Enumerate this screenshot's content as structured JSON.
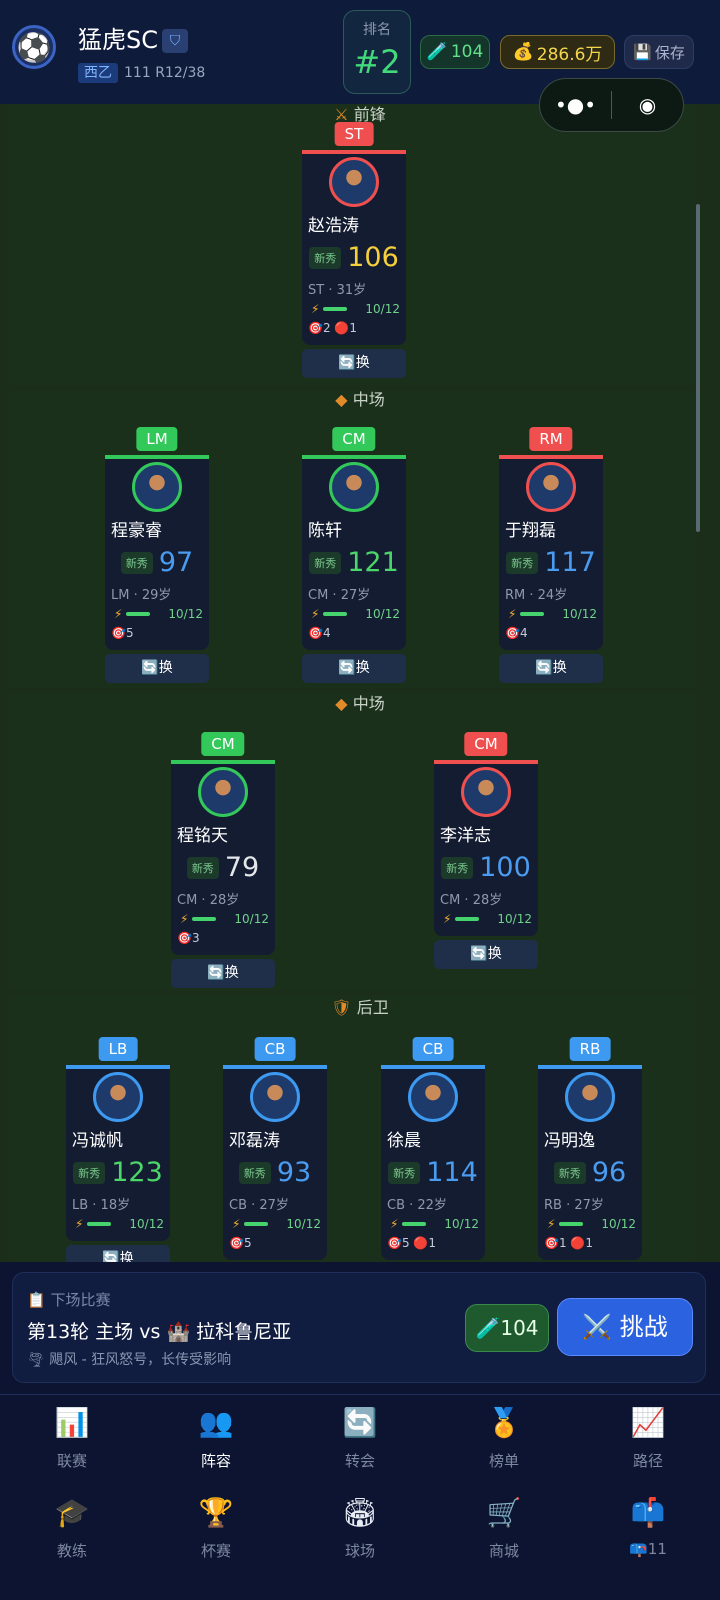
{
  "header": {
    "team": "猛虎SC",
    "league": "西乙",
    "league_num": "111",
    "round": "R12/38",
    "rank_label": "排名",
    "rank": "#2",
    "energy": "104",
    "money": "286.6万",
    "save": "保存"
  },
  "colors": {
    "red": "#ef4f4f",
    "green": "#33c95a",
    "blue": "#3d9af0",
    "yellow": "#f5d03a",
    "rating_blue": "#4a9cf0",
    "rating_green": "#4cd66a",
    "rating_white": "#e4e6ea"
  },
  "sections": [
    {
      "icon": "⚔",
      "title": "前锋"
    },
    {
      "icon": "◆",
      "title": "中场"
    },
    {
      "icon": "◆",
      "title": "中场"
    },
    {
      "icon": "🛡",
      "title": "后卫"
    }
  ],
  "players": [
    {
      "pos": "ST",
      "color": "red",
      "name": "赵浩涛",
      "badge": "新秀",
      "rating": "106",
      "rcolor": "yellow",
      "pa": "ST · 31岁",
      "stamina": "10/12",
      "goals": "2",
      "cards": "1",
      "swap": "换"
    },
    {
      "pos": "LM",
      "color": "green",
      "name": "程豪睿",
      "badge": "新秀",
      "rating": "97",
      "rcolor": "rating_blue",
      "pa": "LM · 29岁",
      "stamina": "10/12",
      "goals": "5",
      "cards": "",
      "swap": "换"
    },
    {
      "pos": "CM",
      "color": "green",
      "name": "陈轩",
      "badge": "新秀",
      "rating": "121",
      "rcolor": "rating_green",
      "pa": "CM · 27岁",
      "stamina": "10/12",
      "goals": "4",
      "cards": "",
      "swap": "换"
    },
    {
      "pos": "RM",
      "color": "red",
      "name": "于翔磊",
      "badge": "新秀",
      "rating": "117",
      "rcolor": "rating_blue",
      "pa": "RM · 24岁",
      "stamina": "10/12",
      "goals": "4",
      "cards": "",
      "swap": "换"
    },
    {
      "pos": "CM",
      "color": "green",
      "name": "程铭天",
      "badge": "新秀",
      "rating": "79",
      "rcolor": "rating_white",
      "pa": "CM · 28岁",
      "stamina": "10/12",
      "goals": "3",
      "cards": "",
      "swap": "换"
    },
    {
      "pos": "CM",
      "color": "red",
      "name": "李洋志",
      "badge": "新秀",
      "rating": "100",
      "rcolor": "rating_blue",
      "pa": "CM · 28岁",
      "stamina": "10/12",
      "goals": "",
      "cards": "",
      "swap": "换"
    },
    {
      "pos": "LB",
      "color": "blue",
      "name": "冯诚帆",
      "badge": "新秀",
      "rating": "123",
      "rcolor": "rating_green",
      "pa": "LB · 18岁",
      "stamina": "10/12",
      "goals": "",
      "cards": "",
      "swap": "换"
    },
    {
      "pos": "CB",
      "color": "blue",
      "name": "邓磊涛",
      "badge": "新秀",
      "rating": "93",
      "rcolor": "rating_blue",
      "pa": "CB · 27岁",
      "stamina": "10/12",
      "goals": "5",
      "cards": "",
      "swap": ""
    },
    {
      "pos": "CB",
      "color": "blue",
      "name": "徐晨",
      "badge": "新秀",
      "rating": "114",
      "rcolor": "rating_blue",
      "pa": "CB · 22岁",
      "stamina": "10/12",
      "goals": "5",
      "cards": "1",
      "swap": ""
    },
    {
      "pos": "RB",
      "color": "blue",
      "name": "冯明逸",
      "badge": "新秀",
      "rating": "96",
      "rcolor": "rating_blue",
      "pa": "RB · 27岁",
      "stamina": "10/12",
      "goals": "1",
      "cards": "1",
      "swap": ""
    }
  ],
  "next_match": {
    "label": "下场比赛",
    "title": "第13轮 主场 vs 🏰 拉科鲁尼亚",
    "weather": "飓风 - 狂风怒号，长传受影响",
    "energy": "104",
    "challenge": "挑战"
  },
  "nav": [
    {
      "icon": "📊",
      "label": "联赛"
    },
    {
      "icon": "👥",
      "label": "阵容",
      "active": true
    },
    {
      "icon": "🔄",
      "label": "转会"
    },
    {
      "icon": "🏅",
      "label": "榜单"
    },
    {
      "icon": "📈",
      "label": "路径"
    },
    {
      "icon": "🎓",
      "label": "教练"
    },
    {
      "icon": "🏆",
      "label": "杯赛"
    },
    {
      "icon": "🏟",
      "label": "球场"
    },
    {
      "icon": "🛒",
      "label": "商城"
    },
    {
      "icon": "📫",
      "label": "📪11"
    }
  ]
}
